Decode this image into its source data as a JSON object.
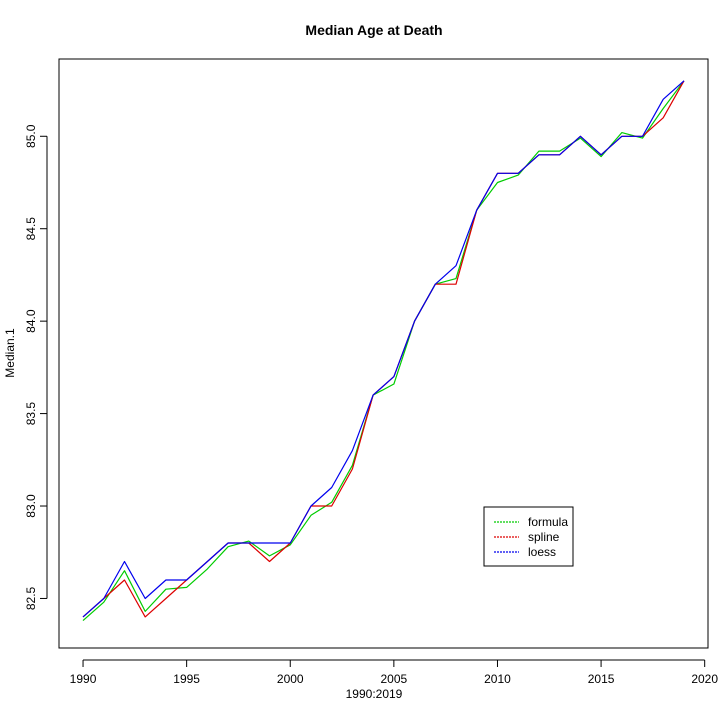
{
  "chart_data": {
    "type": "line",
    "title": "Median Age at Death",
    "xlabel": "1990:2019",
    "ylabel": "Median.1",
    "xlim": [
      1990,
      2019
    ],
    "ylim": [
      82.35,
      85.3
    ],
    "x_ticks": [
      1990,
      1995,
      2000,
      2005,
      2010,
      2015,
      2020
    ],
    "x_tick_labels": [
      "1990",
      "1995",
      "2000",
      "2005",
      "2010",
      "2015",
      "2020"
    ],
    "y_ticks": [
      82.5,
      83.0,
      83.5,
      84.0,
      84.5,
      85.0
    ],
    "y_tick_labels": [
      "82.5",
      "83.0",
      "83.5",
      "84.0",
      "84.5",
      "85.0"
    ],
    "grid": false,
    "legend_position": "bottom-right",
    "x": [
      1990,
      1991,
      1992,
      1993,
      1994,
      1995,
      1996,
      1997,
      1998,
      1999,
      2000,
      2001,
      2002,
      2003,
      2004,
      2005,
      2006,
      2007,
      2008,
      2009,
      2010,
      2011,
      2012,
      2013,
      2014,
      2015,
      2016,
      2017,
      2018,
      2019
    ],
    "series": [
      {
        "name": "formula",
        "color": "#00cc00",
        "values": [
          82.38,
          82.48,
          82.65,
          82.43,
          82.55,
          82.56,
          82.66,
          82.78,
          82.81,
          82.73,
          82.79,
          82.95,
          83.02,
          83.22,
          83.6,
          83.66,
          84.0,
          84.2,
          84.23,
          84.6,
          84.75,
          84.79,
          84.92,
          84.92,
          84.99,
          84.89,
          85.02,
          84.99,
          85.15,
          85.3
        ]
      },
      {
        "name": "spline",
        "color": "#dd0000",
        "values": [
          82.4,
          82.5,
          82.6,
          82.4,
          82.5,
          82.6,
          82.7,
          82.8,
          82.8,
          82.7,
          82.8,
          83.0,
          83.0,
          83.2,
          83.6,
          83.7,
          84.0,
          84.2,
          84.2,
          84.6,
          84.8,
          84.8,
          84.9,
          84.9,
          85.0,
          84.9,
          85.0,
          85.0,
          85.1,
          85.3
        ]
      },
      {
        "name": "loess",
        "color": "#0000ee",
        "values": [
          82.4,
          82.5,
          82.7,
          82.5,
          82.6,
          82.6,
          82.7,
          82.8,
          82.8,
          82.8,
          82.8,
          83.0,
          83.1,
          83.3,
          83.6,
          83.7,
          84.0,
          84.2,
          84.3,
          84.6,
          84.8,
          84.8,
          84.9,
          84.9,
          85.0,
          84.9,
          85.0,
          85.0,
          85.2,
          85.3
        ]
      }
    ]
  }
}
